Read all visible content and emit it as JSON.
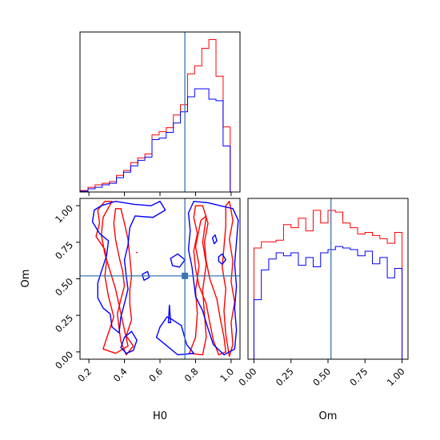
{
  "chart_data": {
    "type": "corner",
    "parameters": [
      "H0",
      "Om"
    ],
    "truth": {
      "H0": 0.74,
      "Om": 0.52
    },
    "colors": {
      "series_a": "#ff0000",
      "series_b": "#0000ff",
      "truth": "#3b75af"
    },
    "panels": [
      {
        "id": "hist-H0",
        "type": "step-histogram",
        "xlim": [
          0.15,
          1.05
        ],
        "ylim": [
          0,
          1.05
        ],
        "xticks": [
          "0.2",
          "0.4",
          "0.6",
          "0.8",
          "1.0"
        ],
        "tick_labels_visible": false,
        "bin_edges": [
          0.155,
          0.195,
          0.235,
          0.275,
          0.315,
          0.355,
          0.395,
          0.435,
          0.475,
          0.515,
          0.555,
          0.595,
          0.635,
          0.675,
          0.715,
          0.755,
          0.795,
          0.835,
          0.875,
          0.915,
          0.955,
          0.995
        ],
        "series": [
          {
            "values": [
              0.01,
              0.031,
              0.047,
              0.057,
              0.068,
              0.109,
              0.141,
              0.193,
              0.224,
              0.25,
              0.375,
              0.396,
              0.422,
              0.505,
              0.573,
              0.776,
              0.828,
              0.943,
              1.0,
              0.76,
              0.427
            ]
          },
          {
            "values": [
              0.005,
              0.021,
              0.031,
              0.047,
              0.057,
              0.094,
              0.13,
              0.172,
              0.208,
              0.229,
              0.344,
              0.354,
              0.391,
              0.453,
              0.526,
              0.625,
              0.677,
              0.677,
              0.609,
              0.599,
              0.302
            ]
          }
        ]
      },
      {
        "id": "contour-H0-Om",
        "type": "contour",
        "xlabel": "H0",
        "ylabel": "Om",
        "xlim": [
          0.15,
          1.05
        ],
        "ylim": [
          -0.05,
          1.05
        ],
        "xticks": [
          "0.2",
          "0.4",
          "0.6",
          "0.8",
          "1.0"
        ],
        "yticks": [
          "0.00",
          "0.25",
          "0.50",
          "0.75",
          "1.00"
        ],
        "series": [
          {
            "contours": [
              [
                [
                  0.33,
                  1.03
                ],
                [
                  0.28,
                  0.92
                ],
                [
                  0.27,
                  0.8
                ],
                [
                  0.29,
                  0.67
                ],
                [
                  0.32,
                  0.55
                ],
                [
                  0.35,
                  0.43
                ],
                [
                  0.37,
                  0.32
                ],
                [
                  0.4,
                  0.15
                ],
                [
                  0.42,
                  0.04
                ],
                [
                  0.35,
                  -0.01
                ],
                [
                  0.28,
                  0.02
                ],
                [
                  0.31,
                  0.13
                ],
                [
                  0.34,
                  0.24
                ],
                [
                  0.31,
                  0.38
                ],
                [
                  0.29,
                  0.52
                ],
                [
                  0.3,
                  0.63
                ],
                [
                  0.29,
                  0.7
                ],
                [
                  0.24,
                  0.79
                ],
                [
                  0.26,
                  0.88
                ],
                [
                  0.25,
                  0.97
                ],
                [
                  0.29,
                  1.03
                ]
              ],
              [
                [
                  0.38,
                  0.98
                ],
                [
                  0.4,
                  0.88
                ],
                [
                  0.42,
                  0.77
                ],
                [
                  0.43,
                  0.65
                ],
                [
                  0.44,
                  0.52
                ],
                [
                  0.43,
                  0.42
                ],
                [
                  0.43,
                  0.33
                ],
                [
                  0.44,
                  0.22
                ],
                [
                  0.41,
                  0.11
                ],
                [
                  0.45,
                  0.04
                ],
                [
                  0.41,
                  -0.02
                ],
                [
                  0.38,
                  0.07
                ],
                [
                  0.37,
                  0.16
                ],
                [
                  0.36,
                  0.26
                ],
                [
                  0.38,
                  0.36
                ],
                [
                  0.4,
                  0.45
                ],
                [
                  0.39,
                  0.55
                ],
                [
                  0.37,
                  0.65
                ],
                [
                  0.35,
                  0.77
                ],
                [
                  0.34,
                  0.88
                ],
                [
                  0.35,
                  0.98
                ]
              ],
              [
                [
                  0.84,
                  1.0
                ],
                [
                  0.87,
                  0.88
                ],
                [
                  0.85,
                  0.75
                ],
                [
                  0.86,
                  0.62
                ],
                [
                  0.88,
                  0.5
                ],
                [
                  0.92,
                  0.36
                ],
                [
                  0.94,
                  0.22
                ],
                [
                  0.96,
                  0.1
                ],
                [
                  0.97,
                  0.0
                ],
                [
                  0.93,
                  -0.02
                ],
                [
                  0.9,
                  0.08
                ],
                [
                  0.88,
                  0.2
                ],
                [
                  0.86,
                  0.33
                ],
                [
                  0.82,
                  0.45
                ],
                [
                  0.8,
                  0.57
                ],
                [
                  0.79,
                  0.69
                ],
                [
                  0.81,
                  0.81
                ],
                [
                  0.79,
                  0.92
                ],
                [
                  0.8,
                  1.0
                ]
              ],
              [
                [
                  0.99,
                  1.03
                ],
                [
                  1.01,
                  0.9
                ],
                [
                  0.99,
                  0.77
                ],
                [
                  1.01,
                  0.62
                ],
                [
                  1.0,
                  0.48
                ],
                [
                  1.02,
                  0.34
                ],
                [
                  1.0,
                  0.2
                ],
                [
                  1.01,
                  0.05
                ],
                [
                  0.99,
                  -0.03
                ],
                [
                  0.97,
                  0.12
                ],
                [
                  0.96,
                  0.28
                ],
                [
                  0.97,
                  0.43
                ],
                [
                  0.95,
                  0.58
                ],
                [
                  0.96,
                  0.72
                ],
                [
                  0.97,
                  0.86
                ],
                [
                  0.97,
                  1.0
                ]
              ],
              [
                [
                  0.765,
                  -0.01
                ],
                [
                  0.8,
                  0.1
                ],
                [
                  0.81,
                  0.26
                ],
                [
                  0.8,
                  0.42
                ],
                [
                  0.82,
                  0.59
                ],
                [
                  0.8,
                  0.72
                ],
                [
                  0.83,
                  0.9
                ],
                [
                  0.86,
                  0.93
                ],
                [
                  0.84,
                  0.75
                ],
                [
                  0.86,
                  0.6
                ],
                [
                  0.84,
                  0.42
                ],
                [
                  0.85,
                  0.26
                ],
                [
                  0.86,
                  0.1
                ],
                [
                  0.84,
                  -0.02
                ]
              ],
              [
                [
                  0.468,
                  0.68
                ],
                [
                  0.472,
                  0.68
                ]
              ]
            ]
          },
          {
            "contours": [
              [
                [
                  0.27,
                  1.0
                ],
                [
                  0.35,
                  1.03
                ],
                [
                  0.45,
                  1.01
                ],
                [
                  0.55,
                  1.0
                ],
                [
                  0.6,
                  1.03
                ],
                [
                  0.63,
                  0.97
                ],
                [
                  0.56,
                  0.92
                ],
                [
                  0.46,
                  0.93
                ],
                [
                  0.43,
                  0.85
                ],
                [
                  0.42,
                  0.73
                ],
                [
                  0.4,
                  0.63
                ],
                [
                  0.41,
                  0.52
                ],
                [
                  0.42,
                  0.43
                ],
                [
                  0.4,
                  0.33
                ],
                [
                  0.38,
                  0.24
                ],
                [
                  0.37,
                  0.13
                ],
                [
                  0.33,
                  0.17
                ],
                [
                  0.32,
                  0.26
                ],
                [
                  0.28,
                  0.3
                ],
                [
                  0.25,
                  0.37
                ],
                [
                  0.25,
                  0.47
                ],
                [
                  0.27,
                  0.55
                ],
                [
                  0.3,
                  0.66
                ],
                [
                  0.31,
                  0.76
                ],
                [
                  0.26,
                  0.81
                ],
                [
                  0.22,
                  0.89
                ],
                [
                  0.23,
                  0.97
                ]
              ],
              [
                [
                  0.38,
                  0.03
                ],
                [
                  0.4,
                  0.1
                ],
                [
                  0.44,
                  0.14
                ],
                [
                  0.47,
                  0.08
                ],
                [
                  0.45,
                  0.01
                ],
                [
                  0.41,
                  -0.01
                ]
              ],
              [
                [
                  0.79,
                  1.03
                ],
                [
                  0.87,
                  1.02
                ],
                [
                  0.94,
                  1.0
                ],
                [
                  1.01,
                  0.98
                ],
                [
                  1.04,
                  0.9
                ],
                [
                  1.03,
                  0.75
                ],
                [
                  1.02,
                  0.6
                ],
                [
                  1.03,
                  0.45
                ],
                [
                  1.02,
                  0.3
                ],
                [
                  1.03,
                  0.15
                ],
                [
                  1.02,
                  0.02
                ],
                [
                  0.96,
                  -0.02
                ],
                [
                  0.9,
                  0.05
                ],
                [
                  0.87,
                  0.16
                ],
                [
                  0.84,
                  0.28
                ],
                [
                  0.8,
                  0.38
                ],
                [
                  0.79,
                  0.48
                ],
                [
                  0.78,
                  0.58
                ],
                [
                  0.76,
                  0.7
                ],
                [
                  0.77,
                  0.83
                ],
                [
                  0.76,
                  0.95
                ]
              ],
              [
                [
                  0.67,
                  0.22
                ],
                [
                  0.72,
                  0.18
                ],
                [
                  0.75,
                  0.05
                ],
                [
                  0.79,
                  -0.01
                ],
                [
                  0.7,
                  -0.02
                ],
                [
                  0.64,
                  0.04
                ],
                [
                  0.58,
                  0.1
                ],
                [
                  0.6,
                  0.17
                ],
                [
                  0.64,
                  0.24
                ]
              ],
              [
                [
                  0.66,
                  0.64
                ],
                [
                  0.7,
                  0.67
                ],
                [
                  0.74,
                  0.63
                ],
                [
                  0.71,
                  0.58
                ],
                [
                  0.67,
                  0.59
                ]
              ],
              [
                [
                  0.93,
                  0.65
                ],
                [
                  0.95,
                  0.67
                ],
                [
                  0.97,
                  0.63
                ],
                [
                  0.95,
                  0.6
                ],
                [
                  0.93,
                  0.62
                ]
              ],
              [
                [
                  0.895,
                  0.78
                ],
                [
                  0.91,
                  0.8
                ],
                [
                  0.92,
                  0.76
                ],
                [
                  0.905,
                  0.74
                ]
              ],
              [
                [
                  0.5,
                  0.53
                ],
                [
                  0.53,
                  0.55
                ],
                [
                  0.54,
                  0.51
                ],
                [
                  0.51,
                  0.49
                ]
              ],
              [
                [
                  0.647,
                  0.2
                ],
                [
                  0.653,
                  0.32
                ],
                [
                  0.66,
                  0.2
                ]
              ]
            ]
          }
        ]
      },
      {
        "id": "hist-Om",
        "type": "step-histogram",
        "xlabel": "Om",
        "xlim": [
          -0.04,
          1.04
        ],
        "ylim": [
          0,
          1.07
        ],
        "xticks": [
          "0.00",
          "0.25",
          "0.50",
          "0.75",
          "1.00"
        ],
        "bin_edges": [
          0.0,
          0.05,
          0.1,
          0.15,
          0.2,
          0.25,
          0.3,
          0.35,
          0.4,
          0.45,
          0.5,
          0.55,
          0.6,
          0.65,
          0.7,
          0.75,
          0.8,
          0.85,
          0.9,
          0.95,
          1.0
        ],
        "series": [
          {
            "values": [
              0.74,
              0.781,
              0.781,
              0.792,
              0.896,
              0.875,
              0.938,
              0.854,
              0.99,
              0.906,
              0.99,
              0.979,
              0.906,
              0.875,
              0.833,
              0.844,
              0.823,
              0.802,
              0.771,
              0.844
            ]
          },
          {
            "values": [
              0.396,
              0.594,
              0.667,
              0.708,
              0.688,
              0.708,
              0.625,
              0.677,
              0.615,
              0.708,
              0.729,
              0.75,
              0.74,
              0.729,
              0.688,
              0.719,
              0.635,
              0.677,
              0.542,
              0.604
            ]
          }
        ]
      }
    ]
  }
}
